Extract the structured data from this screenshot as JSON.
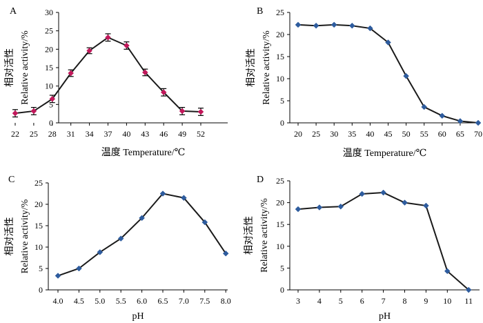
{
  "chart_data": [
    {
      "panel": "A",
      "type": "line",
      "categories": [
        "22",
        "25",
        "28",
        "31",
        "34",
        "37",
        "40",
        "43",
        "46",
        "49",
        "52"
      ],
      "values": [
        2.6,
        3.2,
        6.5,
        13.5,
        19.6,
        23.2,
        21.0,
        13.7,
        8.3,
        3.2,
        3.0
      ],
      "errors": [
        1.0,
        1.0,
        1.0,
        0.9,
        0.8,
        1.0,
        1.0,
        0.9,
        1.0,
        1.0,
        1.0
      ],
      "xlabel": "温度  Temperature/℃",
      "ylabel_cn": "相对活性",
      "ylabel": "Relative activity/%",
      "ylim": [
        0,
        30
      ],
      "yticks": [
        0,
        5,
        10,
        15,
        20,
        25,
        30
      ],
      "marker_color": "#c2185b",
      "error_bars": true
    },
    {
      "panel": "B",
      "type": "line",
      "categories": [
        "20",
        "25",
        "30",
        "35",
        "40",
        "45",
        "50",
        "55",
        "60",
        "65",
        "70"
      ],
      "values": [
        22.2,
        22.0,
        22.2,
        22.0,
        21.4,
        18.2,
        10.6,
        3.6,
        1.6,
        0.4,
        0.0
      ],
      "xlabel": "温度  Temperature/℃",
      "ylabel_cn": "相对活性",
      "ylabel": "Relative activity/%",
      "ylim": [
        0,
        25
      ],
      "yticks": [
        0,
        5,
        10,
        15,
        20,
        25
      ],
      "marker_color": "#2e5c9e",
      "error_bars": false
    },
    {
      "panel": "C",
      "type": "line",
      "categories": [
        "4.0",
        "4.5",
        "5.0",
        "5.5",
        "6.0",
        "6.5",
        "7.0",
        "7.5",
        "8.0"
      ],
      "values": [
        3.3,
        5.0,
        8.8,
        12.0,
        16.8,
        22.5,
        21.5,
        15.8,
        8.5
      ],
      "xlabel": "pH",
      "ylabel_cn": "相对活性",
      "ylabel": "Relative activity/%",
      "ylim": [
        0,
        25
      ],
      "yticks": [
        0,
        5,
        10,
        15,
        20,
        25
      ],
      "marker_color": "#2e5c9e",
      "error_bars": false
    },
    {
      "panel": "D",
      "type": "line",
      "categories": [
        "3",
        "4",
        "5",
        "6",
        "7",
        "8",
        "9",
        "10",
        "11"
      ],
      "values": [
        18.5,
        18.9,
        19.1,
        22.0,
        22.3,
        20.0,
        19.3,
        4.3,
        0.0
      ],
      "xlabel": "pH",
      "ylabel_cn": "相对活性",
      "ylabel": "Relative activity/%",
      "ylim": [
        0,
        25
      ],
      "yticks": [
        0,
        5,
        10,
        15,
        20,
        25
      ],
      "marker_color": "#2e5c9e",
      "error_bars": false
    }
  ]
}
